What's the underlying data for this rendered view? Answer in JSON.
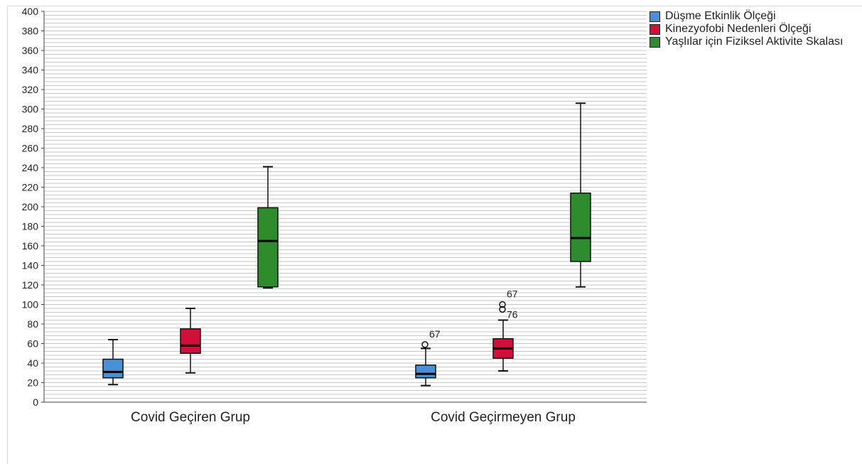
{
  "chart_data": {
    "type": "box",
    "categories": [
      "Covid Geçiren Grup",
      "Covid Geçirmeyen Grup"
    ],
    "ylim": [
      0,
      400
    ],
    "yticks": [
      0,
      20,
      40,
      60,
      80,
      100,
      120,
      140,
      160,
      180,
      200,
      220,
      240,
      260,
      280,
      300,
      320,
      340,
      360,
      380,
      400
    ],
    "grid": true,
    "legend_position": "top-right",
    "series": [
      {
        "name": "Düşme Etkinlik Ölçeği",
        "color": "#4a90d9",
        "boxes": [
          {
            "min": 18,
            "q1": 25,
            "median": 31,
            "q3": 44,
            "max": 64,
            "outliers": []
          },
          {
            "min": 17,
            "q1": 25,
            "median": 29,
            "q3": 38,
            "max": 55,
            "outliers": [
              {
                "value": 59,
                "label": "67"
              }
            ]
          }
        ]
      },
      {
        "name": "Kinezyofobi Nedenleri Ölçeği",
        "color": "#d0103a",
        "boxes": [
          {
            "min": 30,
            "q1": 50,
            "median": 58,
            "q3": 75,
            "max": 96,
            "outliers": []
          },
          {
            "min": 32,
            "q1": 45,
            "median": 55,
            "q3": 65,
            "max": 84,
            "outliers": [
              {
                "value": 100,
                "label": "67"
              },
              {
                "value": 95,
                "label": "76"
              }
            ]
          }
        ]
      },
      {
        "name": "Yaşlılar için Fiziksel Aktivite Skalası",
        "color": "#2e8b2e",
        "boxes": [
          {
            "min": 117,
            "q1": 118,
            "median": 165,
            "q3": 199,
            "max": 241,
            "outliers": []
          },
          {
            "min": 118,
            "q1": 144,
            "median": 168,
            "q3": 214,
            "max": 306,
            "outliers": []
          }
        ]
      }
    ]
  }
}
